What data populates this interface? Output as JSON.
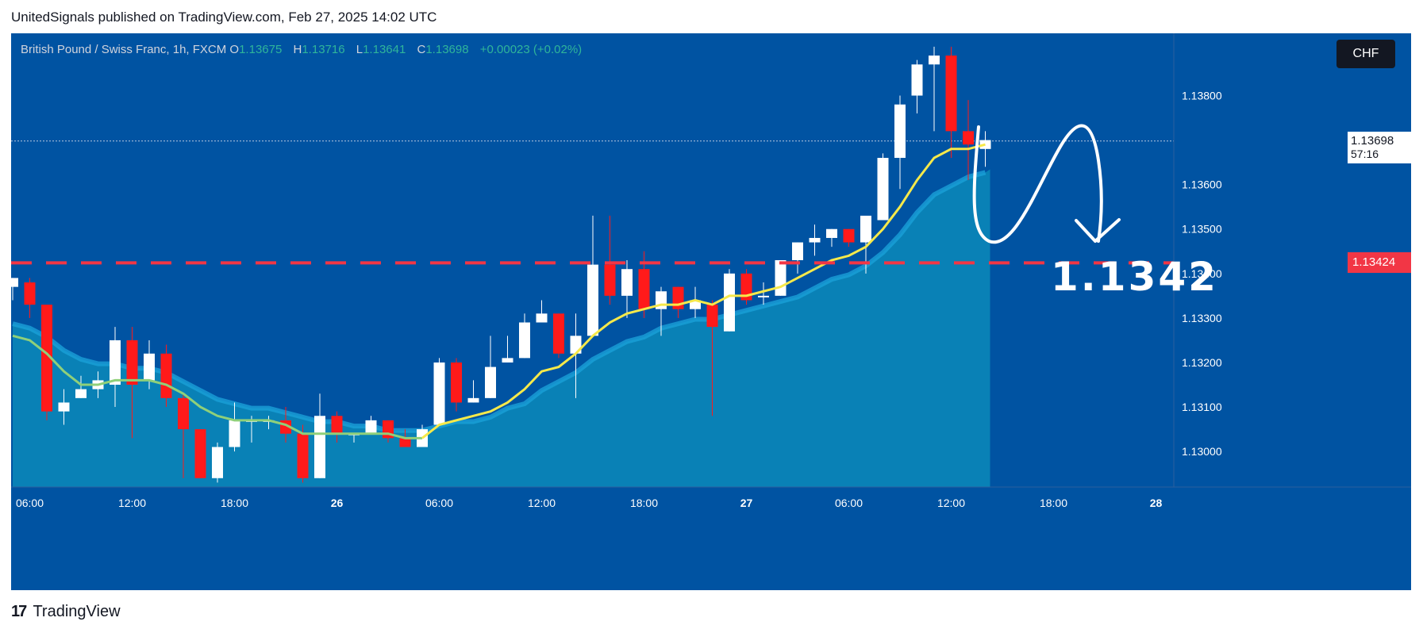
{
  "header": {
    "text": "UnitedSignals published on TradingView.com, Feb 27, 2025 14:02 UTC"
  },
  "legend": {
    "symbol": "British Pound / Swiss Franc, 1h, FXCM",
    "open_key": "O",
    "open": "1.13675",
    "high_key": "H",
    "high": "1.13716",
    "low_key": "L",
    "low": "1.13641",
    "close_key": "C",
    "close": "1.13698",
    "change": "+0.00023 (+0.02%)"
  },
  "currency_badge": "CHF",
  "price_tag": {
    "price": "1.13698",
    "countdown": "57:16"
  },
  "level_tag": "1.13424",
  "target_label": "1.1342",
  "footer": {
    "logo_glyph": "17",
    "brand": "TradingView"
  },
  "colors": {
    "background": "#0053a2",
    "bull_candle": "#ffffff",
    "bear_candle": "#ff1a1a",
    "ema_fast": "#f6e94a",
    "ema_slow": "#8fd07a",
    "band_fill": "#0a86b8",
    "level_line": "#f23645",
    "axis_text": "#ffffff"
  },
  "chart_data": {
    "type": "candlestick",
    "title": "British Pound / Swiss Franc, 1h, FXCM",
    "ylim": [
      1.1292,
      1.1394
    ],
    "y_ticks": [
      1.13,
      1.131,
      1.132,
      1.133,
      1.134,
      1.135,
      1.136,
      1.138
    ],
    "y_tick_labels": [
      "1.13000",
      "1.13100",
      "1.13200",
      "1.13300",
      "1.13400",
      "1.13500",
      "1.13600",
      "1.13800"
    ],
    "x_ticks": [
      {
        "label": "06:00",
        "index": 1
      },
      {
        "label": "12:00",
        "index": 7
      },
      {
        "label": "18:00",
        "index": 13
      },
      {
        "label": "26",
        "index": 19
      },
      {
        "label": "06:00",
        "index": 25
      },
      {
        "label": "12:00",
        "index": 31
      },
      {
        "label": "18:00",
        "index": 37
      },
      {
        "label": "27",
        "index": 43
      },
      {
        "label": "06:00",
        "index": 49
      },
      {
        "label": "12:00",
        "index": 55
      },
      {
        "label": "18:00",
        "index": 61
      },
      {
        "label": "28",
        "index": 67
      }
    ],
    "candles": [
      {
        "o": 1.1337,
        "h": 1.1339,
        "l": 1.1334,
        "c": 1.1339
      },
      {
        "o": 1.1338,
        "h": 1.1339,
        "l": 1.133,
        "c": 1.1333
      },
      {
        "o": 1.1333,
        "h": 1.1333,
        "l": 1.1307,
        "c": 1.1309
      },
      {
        "o": 1.1309,
        "h": 1.1314,
        "l": 1.1306,
        "c": 1.1311
      },
      {
        "o": 1.1312,
        "h": 1.1317,
        "l": 1.1312,
        "c": 1.1314
      },
      {
        "o": 1.1314,
        "h": 1.1318,
        "l": 1.1312,
        "c": 1.1316
      },
      {
        "o": 1.1315,
        "h": 1.1328,
        "l": 1.131,
        "c": 1.1325
      },
      {
        "o": 1.1325,
        "h": 1.1328,
        "l": 1.1303,
        "c": 1.1315
      },
      {
        "o": 1.1316,
        "h": 1.1325,
        "l": 1.1314,
        "c": 1.1322
      },
      {
        "o": 1.1322,
        "h": 1.1324,
        "l": 1.131,
        "c": 1.1312
      },
      {
        "o": 1.1312,
        "h": 1.1313,
        "l": 1.1294,
        "c": 1.1305
      },
      {
        "o": 1.1305,
        "h": 1.1305,
        "l": 1.1294,
        "c": 1.1294
      },
      {
        "o": 1.1294,
        "h": 1.1302,
        "l": 1.1293,
        "c": 1.1301
      },
      {
        "o": 1.1301,
        "h": 1.1311,
        "l": 1.13,
        "c": 1.1307
      },
      {
        "o": 1.1307,
        "h": 1.1308,
        "l": 1.1302,
        "c": 1.1307
      },
      {
        "o": 1.1307,
        "h": 1.1308,
        "l": 1.1305,
        "c": 1.1307
      },
      {
        "o": 1.1307,
        "h": 1.131,
        "l": 1.1302,
        "c": 1.1304
      },
      {
        "o": 1.1304,
        "h": 1.1306,
        "l": 1.1293,
        "c": 1.1294
      },
      {
        "o": 1.1294,
        "h": 1.1313,
        "l": 1.1294,
        "c": 1.1308
      },
      {
        "o": 1.1308,
        "h": 1.1309,
        "l": 1.1302,
        "c": 1.1304
      },
      {
        "o": 1.1304,
        "h": 1.1304,
        "l": 1.1302,
        "c": 1.1304
      },
      {
        "o": 1.1304,
        "h": 1.1308,
        "l": 1.1304,
        "c": 1.1307
      },
      {
        "o": 1.1307,
        "h": 1.1307,
        "l": 1.1302,
        "c": 1.1303
      },
      {
        "o": 1.1303,
        "h": 1.1305,
        "l": 1.1301,
        "c": 1.1301
      },
      {
        "o": 1.1301,
        "h": 1.1306,
        "l": 1.1301,
        "c": 1.1305
      },
      {
        "o": 1.1306,
        "h": 1.1321,
        "l": 1.1306,
        "c": 1.132
      },
      {
        "o": 1.132,
        "h": 1.1321,
        "l": 1.1309,
        "c": 1.1311
      },
      {
        "o": 1.1311,
        "h": 1.1316,
        "l": 1.1311,
        "c": 1.1312
      },
      {
        "o": 1.1312,
        "h": 1.1326,
        "l": 1.1312,
        "c": 1.1319
      },
      {
        "o": 1.132,
        "h": 1.1326,
        "l": 1.132,
        "c": 1.1321
      },
      {
        "o": 1.1321,
        "h": 1.1331,
        "l": 1.1321,
        "c": 1.1329
      },
      {
        "o": 1.1329,
        "h": 1.1334,
        "l": 1.1329,
        "c": 1.1331
      },
      {
        "o": 1.1331,
        "h": 1.1331,
        "l": 1.1321,
        "c": 1.1322
      },
      {
        "o": 1.1322,
        "h": 1.1331,
        "l": 1.1312,
        "c": 1.1326
      },
      {
        "o": 1.1326,
        "h": 1.1353,
        "l": 1.1326,
        "c": 1.1342
      },
      {
        "o": 1.1342,
        "h": 1.1353,
        "l": 1.1333,
        "c": 1.1335
      },
      {
        "o": 1.1335,
        "h": 1.1343,
        "l": 1.133,
        "c": 1.1341
      },
      {
        "o": 1.1341,
        "h": 1.1345,
        "l": 1.133,
        "c": 1.1332
      },
      {
        "o": 1.1332,
        "h": 1.1337,
        "l": 1.1326,
        "c": 1.1336
      },
      {
        "o": 1.1337,
        "h": 1.1337,
        "l": 1.133,
        "c": 1.1332
      },
      {
        "o": 1.1332,
        "h": 1.1337,
        "l": 1.133,
        "c": 1.1334
      },
      {
        "o": 1.1333,
        "h": 1.1334,
        "l": 1.1308,
        "c": 1.1328
      },
      {
        "o": 1.1327,
        "h": 1.1341,
        "l": 1.1327,
        "c": 1.134
      },
      {
        "o": 1.134,
        "h": 1.1341,
        "l": 1.1333,
        "c": 1.1334
      },
      {
        "o": 1.1335,
        "h": 1.1338,
        "l": 1.1333,
        "c": 1.1335
      },
      {
        "o": 1.1335,
        "h": 1.1343,
        "l": 1.1335,
        "c": 1.1343
      },
      {
        "o": 1.1343,
        "h": 1.1347,
        "l": 1.134,
        "c": 1.1347
      },
      {
        "o": 1.1347,
        "h": 1.1351,
        "l": 1.1344,
        "c": 1.1348
      },
      {
        "o": 1.1348,
        "h": 1.135,
        "l": 1.1346,
        "c": 1.135
      },
      {
        "o": 1.135,
        "h": 1.135,
        "l": 1.1346,
        "c": 1.1347
      },
      {
        "o": 1.1347,
        "h": 1.1352,
        "l": 1.134,
        "c": 1.1353
      },
      {
        "o": 1.1352,
        "h": 1.1367,
        "l": 1.1352,
        "c": 1.1366
      },
      {
        "o": 1.1366,
        "h": 1.138,
        "l": 1.1359,
        "c": 1.1378
      },
      {
        "o": 1.138,
        "h": 1.1388,
        "l": 1.1376,
        "c": 1.1387
      },
      {
        "o": 1.1387,
        "h": 1.1391,
        "l": 1.1372,
        "c": 1.1389
      },
      {
        "o": 1.1389,
        "h": 1.1391,
        "l": 1.1366,
        "c": 1.1372
      },
      {
        "o": 1.1372,
        "h": 1.1379,
        "l": 1.1361,
        "c": 1.1369
      },
      {
        "o": 1.1368,
        "h": 1.1372,
        "l": 1.1364,
        "c": 1.137
      }
    ],
    "ema_fast": [
      1.1326,
      1.1325,
      1.1322,
      1.1318,
      1.1315,
      1.1315,
      1.1316,
      1.1316,
      1.1316,
      1.1315,
      1.1313,
      1.131,
      1.1308,
      1.1307,
      1.1307,
      1.1307,
      1.1306,
      1.1304,
      1.1304,
      1.1304,
      1.1304,
      1.1304,
      1.1304,
      1.1303,
      1.1303,
      1.1306,
      1.1307,
      1.1308,
      1.1309,
      1.1311,
      1.1314,
      1.1318,
      1.1319,
      1.1322,
      1.1326,
      1.1329,
      1.1331,
      1.1332,
      1.1333,
      1.1333,
      1.1334,
      1.1333,
      1.1335,
      1.1335,
      1.1336,
      1.1337,
      1.1339,
      1.1341,
      1.1343,
      1.1344,
      1.1346,
      1.135,
      1.1355,
      1.1361,
      1.1366,
      1.1368,
      1.1368,
      1.1369
    ],
    "ema_slow": [
      1.1328,
      1.1327,
      1.1325,
      1.1322,
      1.132,
      1.1319,
      1.1319,
      1.1318,
      1.1318,
      1.1317,
      1.1315,
      1.1313,
      1.1311,
      1.131,
      1.1309,
      1.1309,
      1.1308,
      1.1307,
      1.1306,
      1.1306,
      1.1305,
      1.1305,
      1.1304,
      1.1304,
      1.1304,
      1.1305,
      1.1306,
      1.1306,
      1.1307,
      1.1309,
      1.131,
      1.1313,
      1.1315,
      1.1317,
      1.132,
      1.1322,
      1.1324,
      1.1325,
      1.1327,
      1.1328,
      1.1329,
      1.1329,
      1.133,
      1.1331,
      1.1332,
      1.1333,
      1.1334,
      1.1336,
      1.1338,
      1.1339,
      1.1341,
      1.1344,
      1.1348,
      1.1353,
      1.1357,
      1.1359,
      1.1361,
      1.1362
    ],
    "horizontal_level": 1.13424,
    "last_price": 1.13698
  }
}
